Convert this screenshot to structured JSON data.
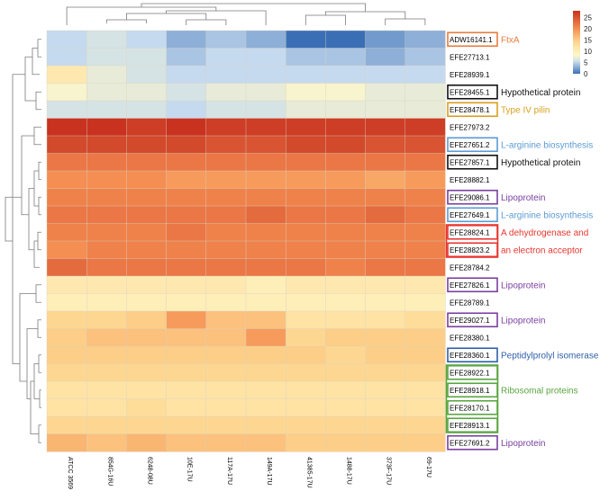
{
  "chart_data": {
    "type": "heatmap",
    "title": "",
    "columns": [
      "ATCC 3569",
      "854G-16U",
      "6248-08U",
      "10E-17U",
      "117A-17U",
      "149A-17U",
      "41385-17U",
      "1488-17U",
      "373F-17U",
      "69-17U"
    ],
    "rows": [
      {
        "label": "ADW16141.1",
        "label_color": "#000000",
        "box_color": "#e87d3e",
        "values": [
          5,
          6,
          5,
          3,
          4,
          3,
          -1,
          -1,
          2,
          3
        ]
      },
      {
        "label": "EFE27713.1",
        "label_color": "#000000",
        "box_color": "",
        "values": [
          5,
          6,
          6,
          4,
          5,
          5,
          4,
          4,
          3,
          4
        ]
      },
      {
        "label": "EFE28939.1",
        "label_color": "#000000",
        "box_color": "",
        "values": [
          11,
          7,
          6,
          5,
          5,
          5,
          5,
          5,
          5,
          5
        ]
      },
      {
        "label": "EFE28455.1",
        "label_color": "#e8362f",
        "box_color": "#111111",
        "values": [
          8,
          7,
          7,
          6,
          7,
          7,
          8,
          8,
          7,
          7
        ]
      },
      {
        "label": "EFE28478.1",
        "label_color": "#e8362f",
        "box_color": "#d8a020",
        "values": [
          6,
          6,
          6,
          5,
          6,
          6,
          7,
          7,
          7,
          7
        ]
      },
      {
        "label": "EFE27973.2",
        "label_color": "#000000",
        "box_color": "",
        "values": [
          28,
          28,
          27,
          28,
          27,
          27,
          27,
          27,
          27,
          27
        ]
      },
      {
        "label": "EFE27651.2",
        "label_color": "#e8362f",
        "box_color": "#5b9bd5",
        "values": [
          26,
          26,
          26,
          26,
          25,
          25,
          26,
          26,
          25,
          25
        ]
      },
      {
        "label": "EFE27857.1",
        "label_color": "#e8362f",
        "box_color": "#111111",
        "values": [
          22,
          22,
          22,
          22,
          22,
          22,
          22,
          22,
          22,
          22
        ]
      },
      {
        "label": "EFE28882.1",
        "label_color": "#000000",
        "box_color": "",
        "values": [
          20,
          20,
          20,
          19,
          19,
          19,
          19,
          19,
          18,
          19
        ]
      },
      {
        "label": "EFE29086.1",
        "label_color": "#000000",
        "box_color": "#7a3fa0",
        "values": [
          21,
          21,
          21,
          21,
          21,
          21,
          21,
          21,
          21,
          21
        ]
      },
      {
        "label": "EFE27649.1",
        "label_color": "#e8362f",
        "box_color": "#5b9bd5",
        "values": [
          22,
          22,
          22,
          22,
          22,
          23,
          22,
          22,
          23,
          22
        ]
      },
      {
        "label": "EFE28824.1",
        "label_color": "#000000",
        "box_color": "#e8362f",
        "values": [
          21,
          21,
          21,
          22,
          21,
          21,
          21,
          21,
          21,
          21
        ]
      },
      {
        "label": "EFE28823.2",
        "label_color": "#000000",
        "box_color": "#e8362f",
        "values": [
          20,
          21,
          21,
          21,
          21,
          21,
          21,
          21,
          21,
          21
        ]
      },
      {
        "label": "EFE28784.2",
        "label_color": "#000000",
        "box_color": "",
        "values": [
          23,
          22,
          22,
          22,
          22,
          22,
          22,
          21,
          22,
          22
        ]
      },
      {
        "label": "EFE27826.1",
        "label_color": "#000000",
        "box_color": "#7a3fa0",
        "values": [
          11,
          11,
          11,
          11,
          11,
          10,
          11,
          11,
          11,
          11
        ]
      },
      {
        "label": "EFE28789.1",
        "label_color": "#000000",
        "box_color": "",
        "values": [
          10,
          10,
          10,
          10,
          10,
          10,
          10,
          10,
          10,
          10
        ]
      },
      {
        "label": "EFE29027.1",
        "label_color": "#000000",
        "box_color": "#7a3fa0",
        "values": [
          14,
          14,
          15,
          19,
          16,
          16,
          12,
          12,
          12,
          13
        ]
      },
      {
        "label": "EFE28380.1",
        "label_color": "#000000",
        "box_color": "",
        "values": [
          15,
          16,
          16,
          16,
          16,
          19,
          14,
          15,
          15,
          15
        ]
      },
      {
        "label": "EFE28360.1",
        "label_color": "#e8362f",
        "box_color": "#2e5fa8",
        "values": [
          15,
          15,
          15,
          15,
          15,
          15,
          15,
          14,
          15,
          15
        ]
      },
      {
        "label": "EFE28922.1",
        "label_color": "#e8362f",
        "box_color": "#5aa640",
        "values": [
          14,
          14,
          14,
          14,
          14,
          14,
          14,
          14,
          14,
          14
        ]
      },
      {
        "label": "EFE28918.1",
        "label_color": "#000000",
        "box_color": "#5aa640",
        "values": [
          12,
          12,
          12,
          12,
          12,
          12,
          12,
          12,
          12,
          12
        ]
      },
      {
        "label": "EFE28170.1",
        "label_color": "#e8362f",
        "box_color": "#5aa640",
        "values": [
          12,
          12,
          13,
          12,
          12,
          12,
          12,
          12,
          12,
          12
        ]
      },
      {
        "label": "EFE28913.1",
        "label_color": "#000000",
        "box_color": "#5aa640",
        "values": [
          14,
          14,
          14,
          14,
          14,
          14,
          14,
          14,
          14,
          14
        ]
      },
      {
        "label": "EFE27691.2",
        "label_color": "#000000",
        "box_color": "#7a3fa0",
        "values": [
          17,
          16,
          17,
          16,
          16,
          16,
          15,
          15,
          15,
          15
        ]
      }
    ],
    "colorbar": {
      "ticks": [
        0,
        5,
        10,
        15,
        20,
        25
      ],
      "min": 0,
      "max": 28,
      "low_color": "#3a6fb5",
      "mid_color": "#fff7c8",
      "high_color": "#c8321f"
    },
    "annotations": [
      {
        "text": "FtxA",
        "color": "#e87d3e",
        "rows": [
          0
        ]
      },
      {
        "text": "Hypothetical protein",
        "color": "#111111",
        "rows": [
          3
        ]
      },
      {
        "text": "Type IV pilin",
        "color": "#d8a020",
        "rows": [
          4
        ]
      },
      {
        "text": "L-arginine biosynthesis",
        "color": "#5b9bd5",
        "rows": [
          6
        ]
      },
      {
        "text": "Hypothetical protein",
        "color": "#111111",
        "rows": [
          7
        ]
      },
      {
        "text": "Lipoprotein",
        "color": "#7a3fa0",
        "rows": [
          9
        ]
      },
      {
        "text": "L-arginine biosynthesis",
        "color": "#5b9bd5",
        "rows": [
          10
        ]
      },
      {
        "text": "A dehydrogenase and",
        "color": "#e8362f",
        "rows": [
          11
        ]
      },
      {
        "text": "an electron acceptor",
        "color": "#e8362f",
        "rows": [
          12
        ]
      },
      {
        "text": "Lipoprotein",
        "color": "#7a3fa0",
        "rows": [
          14
        ]
      },
      {
        "text": "Lipoprotein",
        "color": "#7a3fa0",
        "rows": [
          16
        ]
      },
      {
        "text": "Peptidylprolyl isomerase",
        "color": "#2e5fa8",
        "rows": [
          18
        ]
      },
      {
        "text": "Ribosomal proteins",
        "color": "#5aa640",
        "rows": [
          20
        ]
      },
      {
        "text": "Lipoprotein",
        "color": "#7a3fa0",
        "rows": [
          23
        ]
      }
    ],
    "groups": [
      {
        "rows": [
          11,
          12
        ],
        "color": "#e8362f"
      },
      {
        "rows": [
          19,
          22
        ],
        "color": "#5aa640"
      }
    ]
  }
}
